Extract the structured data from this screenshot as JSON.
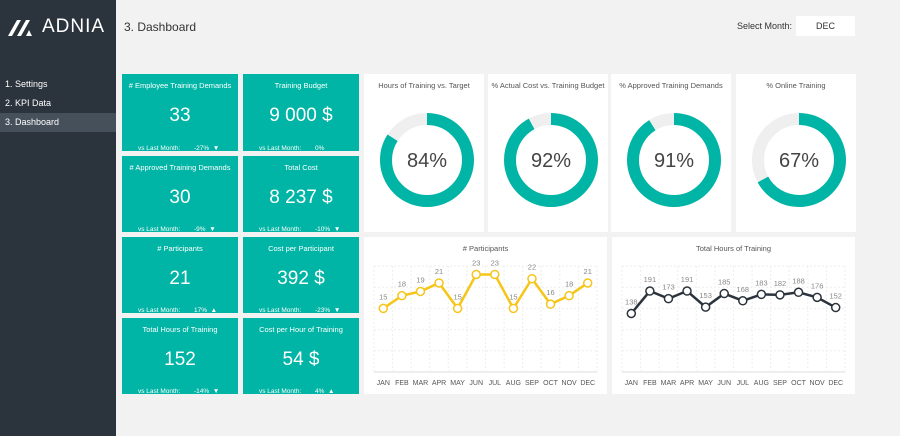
{
  "app": {
    "logo": "ADNIA",
    "title": "3. Dashboard"
  },
  "sidebar": {
    "items": [
      {
        "label": "1. Settings"
      },
      {
        "label": "2. KPI Data"
      },
      {
        "label": "3. Dashboard",
        "active": true
      }
    ]
  },
  "month": {
    "label": "Select Month:",
    "value": "DEC"
  },
  "colors": {
    "accent": "#00b5a5",
    "yellow": "#f5c518",
    "dark": "#2b333c"
  },
  "kpis": [
    {
      "title": "# Employee Training Demands",
      "value": "33",
      "vs": "vs Last Month:",
      "change": "-27%",
      "arrow": "▼"
    },
    {
      "title": "Training Budget",
      "value": "9 000 $",
      "vs": "vs Last Month:",
      "change": "0%",
      "arrow": ""
    },
    {
      "title": "# Approved Training Demands",
      "value": "30",
      "vs": "vs Last Month:",
      "change": "-9%",
      "arrow": "▼"
    },
    {
      "title": "Total Cost",
      "value": "8 237 $",
      "vs": "vs Last Month:",
      "change": "-10%",
      "arrow": "▼"
    },
    {
      "title": "# Participants",
      "value": "21",
      "vs": "vs Last Month:",
      "change": "17%",
      "arrow": "▲"
    },
    {
      "title": "Cost per Participant",
      "value": "392 $",
      "vs": "vs Last Month:",
      "change": "-23%",
      "arrow": "▼"
    },
    {
      "title": "Total Hours of Training",
      "value": "152",
      "vs": "vs Last Month:",
      "change": "-14%",
      "arrow": "▼"
    },
    {
      "title": "Cost per Hour of Training",
      "value": "54 $",
      "vs": "vs Last Month:",
      "change": "4%",
      "arrow": "▲"
    }
  ],
  "donuts": [
    {
      "title": "Hours of Training vs. Target",
      "value": 84,
      "label": "84%"
    },
    {
      "title": "% Actual Cost vs. Training Budget",
      "value": 92,
      "label": "92%"
    },
    {
      "title": "% Approved Training Demands",
      "value": 91,
      "label": "91%"
    },
    {
      "title": "% Online Training",
      "value": 67,
      "label": "67%"
    }
  ],
  "chart_data": [
    {
      "type": "line",
      "title": "# Participants",
      "categories": [
        "JAN",
        "FEB",
        "MAR",
        "APR",
        "MAY",
        "JUN",
        "JUL",
        "AUG",
        "SEP",
        "OCT",
        "NOV",
        "DEC"
      ],
      "values": [
        15,
        18,
        19,
        21,
        15,
        23,
        23,
        15,
        22,
        16,
        18,
        21
      ],
      "ylim": [
        0,
        25
      ],
      "grid": true,
      "color": "#f5c518"
    },
    {
      "type": "line",
      "title": "Total Hours of Training",
      "categories": [
        "JAN",
        "FEB",
        "MAR",
        "APR",
        "MAY",
        "JUN",
        "JUL",
        "AUG",
        "SEP",
        "OCT",
        "NOV",
        "DEC"
      ],
      "values": [
        138,
        191,
        173,
        191,
        153,
        185,
        168,
        183,
        182,
        188,
        176,
        152
      ],
      "ylim": [
        0,
        250
      ],
      "grid": true,
      "color": "#2b333c"
    }
  ]
}
